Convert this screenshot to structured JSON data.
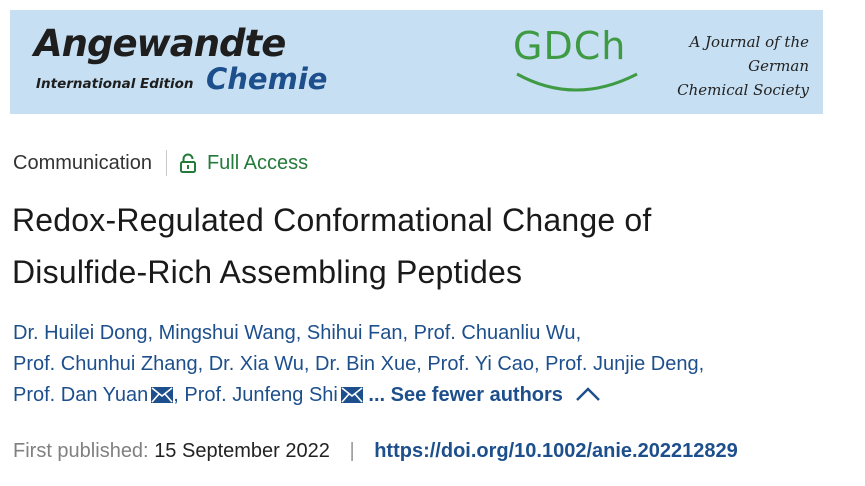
{
  "banner": {
    "journal_name_line1": "Angewandte",
    "journal_name_edition": "International Edition",
    "journal_name_line2": "Chemie",
    "society_logo": "GDCh",
    "society_tagline_1": "A Journal of the",
    "society_tagline_2": "German",
    "society_tagline_3": "Chemical Society"
  },
  "article": {
    "type": "Communication",
    "access": "Full Access",
    "title_line1": "Redox-Regulated Conformational Change of",
    "title_line2": "Disulfide-Rich Assembling Peptides",
    "authors": [
      "Dr. Huilei Dong",
      "Mingshui Wang",
      "Shihui Fan",
      "Prof. Chuanliu Wu",
      "Prof. Chunhui Zhang",
      "Dr. Xia Wu",
      "Dr. Bin Xue",
      "Prof. Yi Cao",
      "Prof. Junjie Deng",
      "Prof. Dan Yuan",
      "Prof. Junfeng Shi"
    ],
    "toggle_authors": "... See fewer authors",
    "published_label": "First published:",
    "published_date": "15 September 2022",
    "doi": "https://doi.org/10.1002/anie.202212829"
  },
  "colors": {
    "banner_bg": "#c6dff2",
    "link_blue": "#1d4f8c",
    "access_green": "#237a3a",
    "gdch_green": "#3f9a44"
  },
  "icons": [
    "lock-open-icon",
    "mail-icon",
    "chevron-up-icon"
  ]
}
